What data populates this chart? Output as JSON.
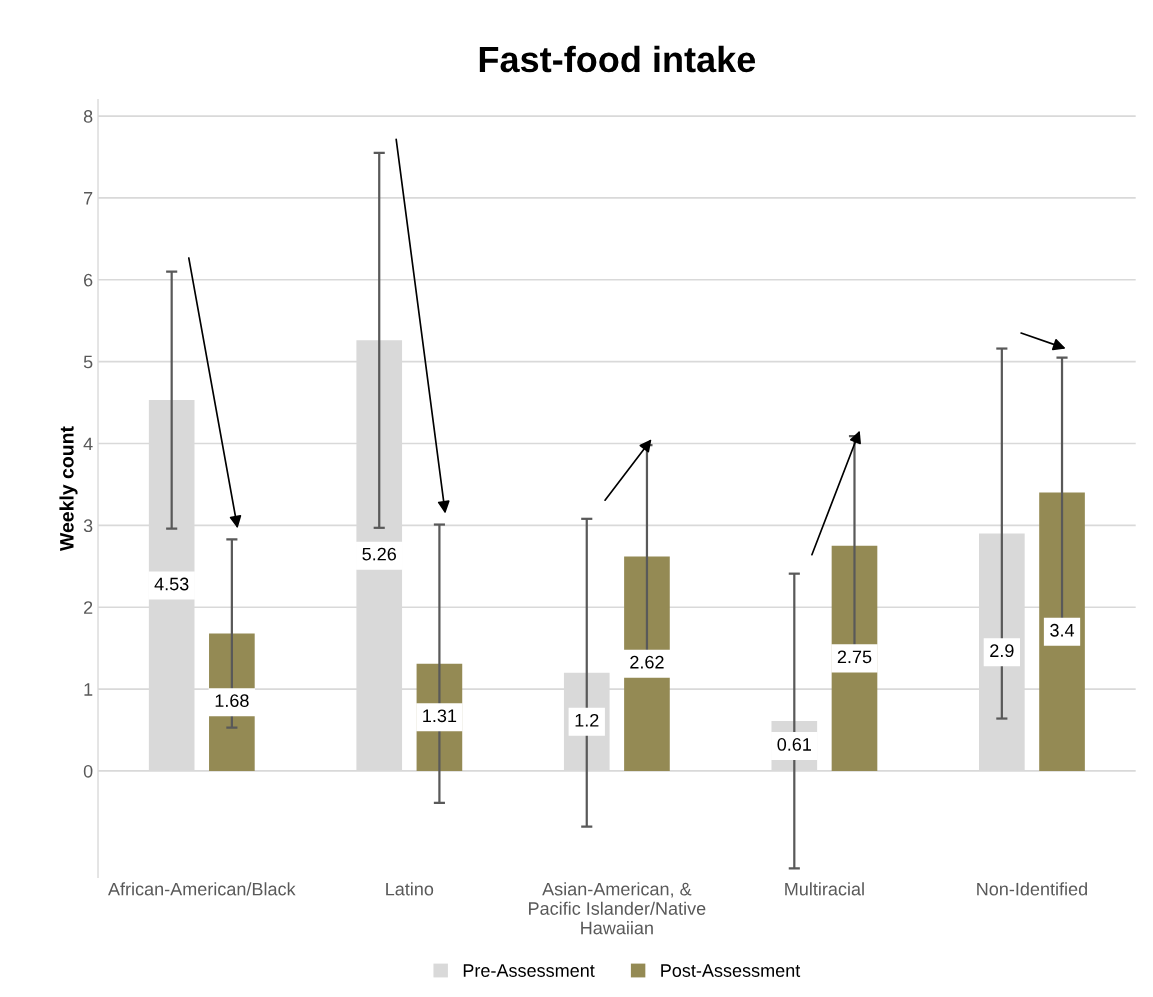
{
  "chart_data": {
    "type": "bar",
    "title": "Fast-food intake",
    "ylabel": "Weekly count",
    "categories": [
      "African-American/Black",
      "Latino",
      "Asian-American, &\nPacific Islander/Native\nHawaiian",
      "Multiracial",
      "Non-Identified"
    ],
    "series": [
      {
        "name": "Pre-Assessment",
        "color": "#d9d9d9",
        "values": [
          4.53,
          5.26,
          1.2,
          0.61,
          2.9
        ],
        "errors": [
          1.57,
          2.29,
          1.88,
          1.8,
          2.26
        ]
      },
      {
        "name": "Post-Assessment",
        "color": "#948a54",
        "values": [
          1.68,
          1.31,
          2.62,
          2.75,
          3.4
        ],
        "errors": [
          1.15,
          1.7,
          1.36,
          1.34,
          1.65
        ]
      }
    ],
    "ylim": [
      -1.3,
      8.2
    ],
    "yticks": [
      0,
      1,
      2,
      3,
      4,
      5,
      6,
      7,
      8
    ],
    "grid": "y",
    "legend": "bottom",
    "data_labels": true
  }
}
